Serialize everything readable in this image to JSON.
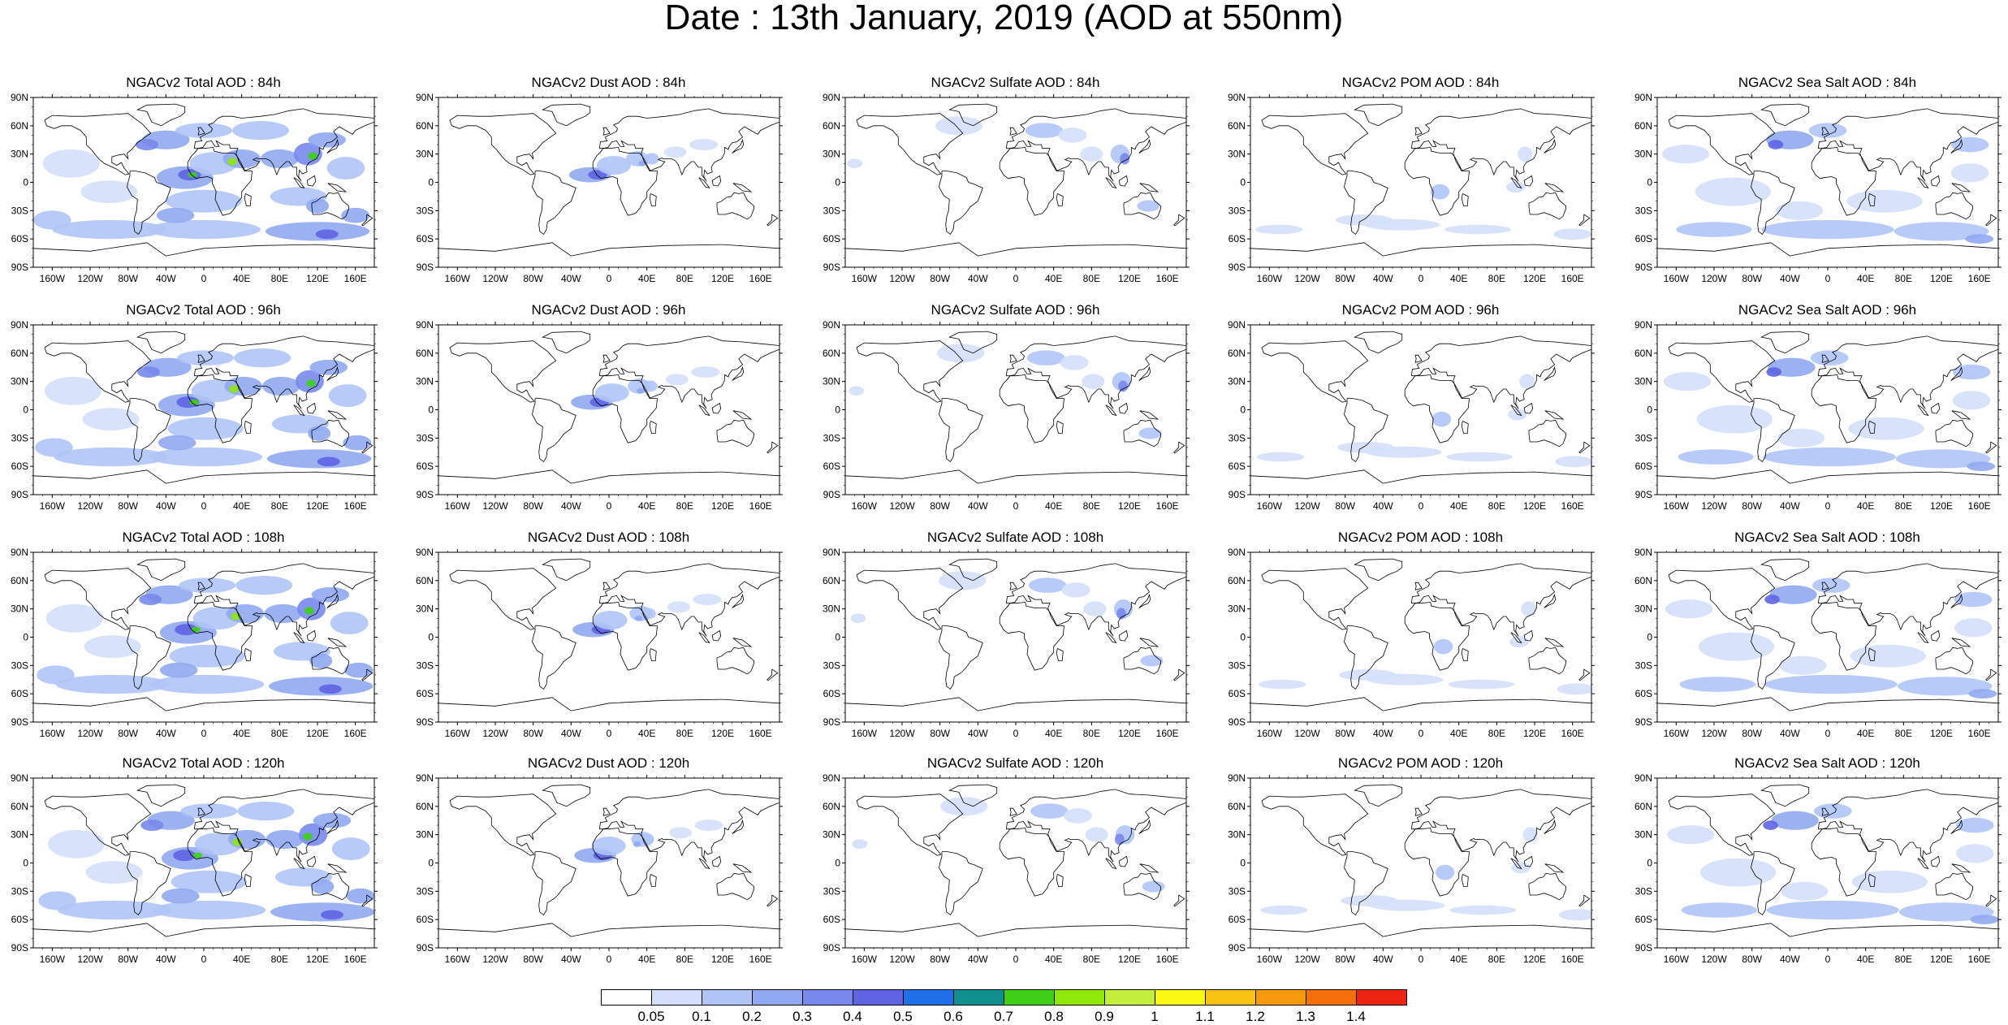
{
  "header": {
    "title": "Date : 13th January, 2019 (AOD at 550nm)"
  },
  "axes": {
    "lat_ticks": [
      "90N",
      "60N",
      "30N",
      "0",
      "30S",
      "60S",
      "90S"
    ],
    "lon_ticks": [
      "160W",
      "120W",
      "80W",
      "40W",
      "0",
      "40E",
      "80E",
      "120E",
      "160E"
    ]
  },
  "panels": [
    {
      "title": "NGACv2 Total AOD : 84h",
      "field": "total"
    },
    {
      "title": "NGACv2 Dust AOD : 84h",
      "field": "dust"
    },
    {
      "title": "NGACv2 Sulfate AOD : 84h",
      "field": "sulfate"
    },
    {
      "title": "NGACv2 POM AOD : 84h",
      "field": "pom"
    },
    {
      "title": "NGACv2 Sea Salt AOD : 84h",
      "field": "seasalt"
    },
    {
      "title": "NGACv2 Total AOD : 96h",
      "field": "total"
    },
    {
      "title": "NGACv2 Dust AOD : 96h",
      "field": "dust"
    },
    {
      "title": "NGACv2 Sulfate AOD : 96h",
      "field": "sulfate"
    },
    {
      "title": "NGACv2 POM AOD : 96h",
      "field": "pom"
    },
    {
      "title": "NGACv2 Sea Salt AOD : 96h",
      "field": "seasalt"
    },
    {
      "title": "NGACv2 Total AOD : 108h",
      "field": "total"
    },
    {
      "title": "NGACv2 Dust AOD : 108h",
      "field": "dust"
    },
    {
      "title": "NGACv2 Sulfate AOD : 108h",
      "field": "sulfate"
    },
    {
      "title": "NGACv2 POM AOD : 108h",
      "field": "pom"
    },
    {
      "title": "NGACv2 Sea Salt AOD : 108h",
      "field": "seasalt"
    },
    {
      "title": "NGACv2 Total AOD : 120h",
      "field": "total"
    },
    {
      "title": "NGACv2 Dust AOD : 120h",
      "field": "dust"
    },
    {
      "title": "NGACv2 Sulfate AOD : 120h",
      "field": "sulfate"
    },
    {
      "title": "NGACv2 POM AOD : 120h",
      "field": "pom"
    },
    {
      "title": "NGACv2 Sea Salt  AOD : 120h",
      "field": "seasalt"
    }
  ],
  "colorbar": {
    "labels": [
      "0.05",
      "0.1",
      "0.2",
      "0.3",
      "0.4",
      "0.5",
      "0.6",
      "0.7",
      "0.8",
      "0.9",
      "1",
      "1.1",
      "1.2",
      "1.3",
      "1.4"
    ],
    "colors": [
      "#ffffff",
      "#d4e0fb",
      "#b0c4f6",
      "#90a9f1",
      "#7888ec",
      "#5e64e2",
      "#1e6fe8",
      "#108f8f",
      "#3ecf16",
      "#8ee80a",
      "#c2ee3e",
      "#f8f812",
      "#f8c312",
      "#f89a0e",
      "#f5700d",
      "#ee2412"
    ]
  }
}
